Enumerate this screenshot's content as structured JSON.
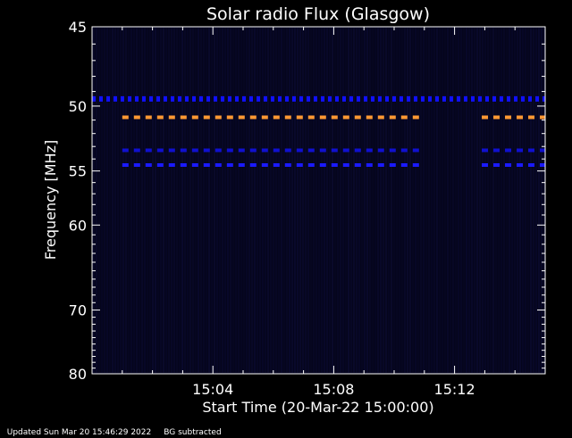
{
  "chart_data": {
    "type": "heatmap",
    "title": "Solar radio Flux (Glasgow)",
    "xlabel": "Start Time (20-Mar-22 15:00:00)",
    "ylabel": "Frequency [MHz]",
    "x_unit": "minutes after 15:00",
    "xlim": [
      0,
      15
    ],
    "ylim": [
      45,
      80
    ],
    "y_scale": "reciprocal",
    "x_ticks": [
      {
        "value": 4,
        "label": "15:04"
      },
      {
        "value": 8,
        "label": "15:08"
      },
      {
        "value": 12,
        "label": "15:12"
      }
    ],
    "y_ticks": [
      {
        "value": 45,
        "label": "45"
      },
      {
        "value": 50,
        "label": "50"
      },
      {
        "value": 55,
        "label": "55"
      },
      {
        "value": 60,
        "label": "60"
      },
      {
        "value": 70,
        "label": "70"
      },
      {
        "value": 80,
        "label": "80"
      }
    ],
    "emission_bands": [
      {
        "freq_mhz": 49.5,
        "x_start": 0,
        "x_end": 15,
        "color": "#1010ff",
        "style": "dotted"
      },
      {
        "freq_mhz": 50.8,
        "x_start": 1.0,
        "x_end": 10.9,
        "color": "#ff9933",
        "style": "dashed"
      },
      {
        "freq_mhz": 50.8,
        "x_start": 12.9,
        "x_end": 15,
        "color": "#ff9933",
        "style": "dashed"
      },
      {
        "freq_mhz": 53.3,
        "x_start": 1.0,
        "x_end": 10.9,
        "color": "#1010d0",
        "style": "dashed"
      },
      {
        "freq_mhz": 53.3,
        "x_start": 12.9,
        "x_end": 15,
        "color": "#1010d0",
        "style": "dashed"
      },
      {
        "freq_mhz": 54.5,
        "x_start": 1.0,
        "x_end": 10.9,
        "color": "#1a1aff",
        "style": "dashed"
      },
      {
        "freq_mhz": 54.5,
        "x_start": 12.9,
        "x_end": 15,
        "color": "#1a1aff",
        "style": "dashed"
      }
    ],
    "background_color": "#000000",
    "plot_background_color": "#05051c"
  },
  "footer": {
    "updated": "Updated Sun Mar 20 15:46:29 2022",
    "note": "BG subtracted"
  }
}
